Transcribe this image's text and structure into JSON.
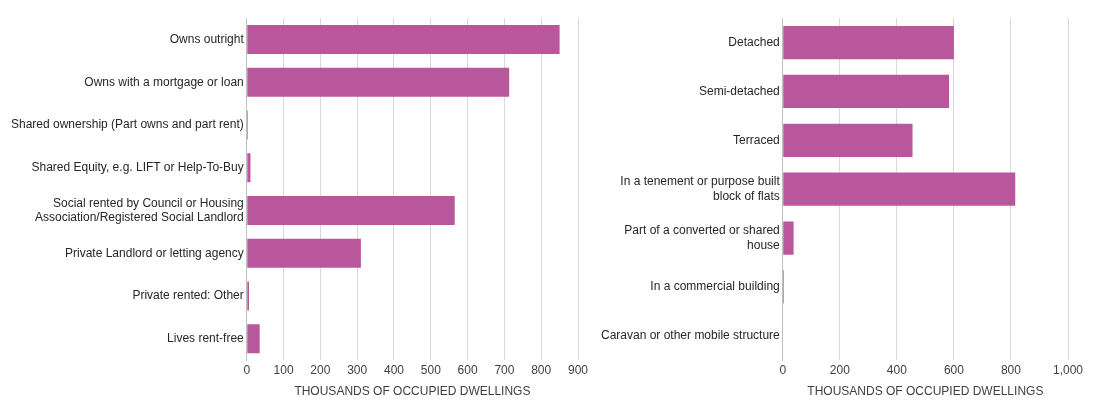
{
  "chart_data": [
    {
      "type": "bar",
      "orientation": "horizontal",
      "categories": [
        "Owns outright",
        "Owns with a mortgage or loan",
        "Shared ownership (Part owns and part rent)",
        "Shared Equity, e.g. LIFT or Help-To-Buy",
        "Social rented by Council or Housing Association/Registered Social Landlord",
        "Private Landlord or letting agency",
        "Private rented: Other",
        "Lives rent-free"
      ],
      "values": [
        850,
        713,
        3,
        10,
        565,
        310,
        6,
        35
      ],
      "color": "#b8579b",
      "xlim": [
        0,
        900
      ],
      "xticks": [
        0,
        100,
        200,
        300,
        400,
        500,
        600,
        700,
        800,
        900
      ],
      "xlabel": "THOUSANDS OF OCCUPIED DWELLINGS",
      "grid": "x",
      "legend": false
    },
    {
      "type": "bar",
      "orientation": "horizontal",
      "categories": [
        "Detached",
        "Semi-detached",
        "Terraced",
        "In a tenement or purpose built block of flats",
        "Part of a converted or shared house",
        "In a commercial building",
        "Caravan or other mobile structure"
      ],
      "values": [
        600,
        583,
        455,
        815,
        38,
        4,
        0
      ],
      "color": "#b8579b",
      "xlim": [
        0,
        1000
      ],
      "xticks": [
        0,
        200,
        400,
        600,
        800,
        {
          "value": 1000,
          "label": "1,000"
        }
      ],
      "xlabel": "THOUSANDS OF OCCUPIED DWELLINGS",
      "grid": "x",
      "legend": false
    }
  ]
}
